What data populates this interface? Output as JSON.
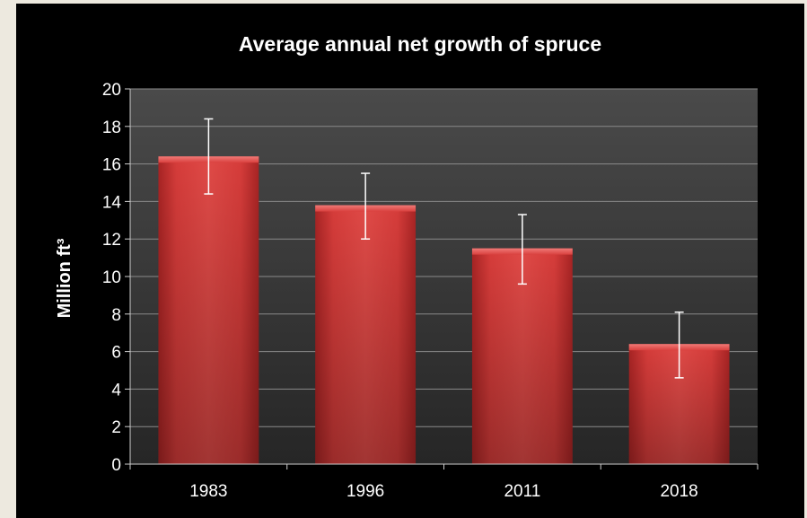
{
  "chart_data": {
    "type": "bar",
    "title": "Average annual net growth of spruce",
    "ylabel": "Million ft³",
    "xlabel": "",
    "categories": [
      "1983",
      "1996",
      "2011",
      "2018"
    ],
    "values": [
      16.4,
      13.8,
      11.5,
      6.4
    ],
    "error_low": [
      14.4,
      12.0,
      9.6,
      4.6
    ],
    "error_high": [
      18.4,
      15.5,
      13.3,
      8.1
    ],
    "ylim": [
      0,
      20
    ],
    "yticks": [
      "0",
      "2",
      "4",
      "6",
      "8",
      "10",
      "12",
      "14",
      "16",
      "18",
      "20"
    ],
    "grid": true,
    "legend": "none",
    "colors": {
      "bar": "#d9403e",
      "plot_bg": "#383838",
      "gridline": "#8a8a8a",
      "error_bar": "#ffffff"
    }
  }
}
